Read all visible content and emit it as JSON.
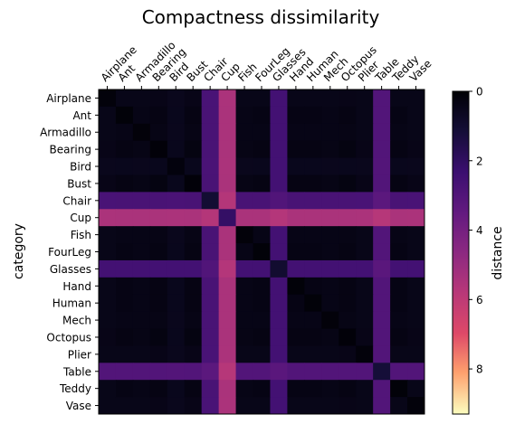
{
  "chart_data": {
    "type": "heatmap",
    "title": "Compactness dissimilarity",
    "ylabel": "category",
    "colorbar_label": "distance",
    "categories": [
      "Airplane",
      "Ant",
      "Armadillo",
      "Bearing",
      "Bird",
      "Bust",
      "Chair",
      "Cup",
      "Fish",
      "FourLeg",
      "Glasses",
      "Hand",
      "Human",
      "Mech",
      "Octopus",
      "Plier",
      "Table",
      "Teddy",
      "Vase"
    ],
    "colormap": "magma_r",
    "colorbar_range": [
      0,
      9.3
    ],
    "colorbar_ticks": [
      0,
      2,
      4,
      6,
      8
    ],
    "category_profile": [
      0.45,
      0.35,
      0.4,
      0.3,
      0.55,
      0.3,
      3.0,
      6.0,
      0.4,
      0.35,
      2.8,
      0.35,
      0.35,
      0.4,
      0.3,
      0.45,
      3.3,
      0.35,
      0.45
    ],
    "max_value": 9.3
  }
}
